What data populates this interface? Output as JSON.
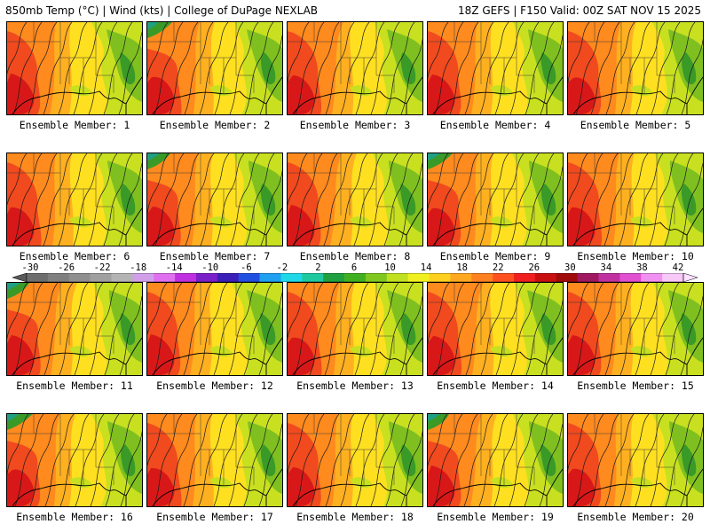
{
  "header": {
    "left": "850mb Temp (°C) | Wind (kts) | College of DuPage NEXLAB",
    "right": "18Z GEFS | F150 Valid: 00Z SAT NOV 15 2025"
  },
  "members": [
    {
      "label": "Ensemble Member: 1",
      "scheme": "warm"
    },
    {
      "label": "Ensemble Member: 2",
      "scheme": "cool"
    },
    {
      "label": "Ensemble Member: 3",
      "scheme": "warm"
    },
    {
      "label": "Ensemble Member: 4",
      "scheme": "warm"
    },
    {
      "label": "Ensemble Member: 5",
      "scheme": "warm"
    },
    {
      "label": "Ensemble Member: 6",
      "scheme": "warm"
    },
    {
      "label": "Ensemble Member: 7",
      "scheme": "cool"
    },
    {
      "label": "Ensemble Member: 8",
      "scheme": "warm"
    },
    {
      "label": "Ensemble Member: 9",
      "scheme": "cool"
    },
    {
      "label": "Ensemble Member: 10",
      "scheme": "warm"
    },
    {
      "label": "Ensemble Member: 11",
      "scheme": "cool"
    },
    {
      "label": "Ensemble Member: 12",
      "scheme": "warm"
    },
    {
      "label": "Ensemble Member: 13",
      "scheme": "warm"
    },
    {
      "label": "Ensemble Member: 14",
      "scheme": "warm"
    },
    {
      "label": "Ensemble Member: 15",
      "scheme": "warm"
    },
    {
      "label": "Ensemble Member: 16",
      "scheme": "cool"
    },
    {
      "label": "Ensemble Member: 17",
      "scheme": "warm"
    },
    {
      "label": "Ensemble Member: 18",
      "scheme": "warm"
    },
    {
      "label": "Ensemble Member: 19",
      "scheme": "cool"
    },
    {
      "label": "Ensemble Member: 20",
      "scheme": "warm"
    }
  ],
  "colorbar": {
    "labels": [
      "-30",
      "-26",
      "-22",
      "-18",
      "-14",
      "-10",
      "-6",
      "-2",
      "2",
      "6",
      "10",
      "14",
      "18",
      "22",
      "26",
      "30",
      "34",
      "38",
      "42"
    ],
    "colors": [
      "#6e6e6e",
      "#7f7f7f",
      "#8f8f8f",
      "#a0a0a0",
      "#b4b4b4",
      "#d19fe8",
      "#e070f0",
      "#c030e0",
      "#7a20c8",
      "#3a20b8",
      "#2050e0",
      "#20a0f0",
      "#20d8e8",
      "#20c8a0",
      "#20a040",
      "#40b020",
      "#80c820",
      "#c0e020",
      "#f0f020",
      "#ffd020",
      "#ffa820",
      "#ff8020",
      "#ff5020",
      "#f02020",
      "#c81010",
      "#a00a0a",
      "#a01860",
      "#c030a0",
      "#e050d0",
      "#f090f0",
      "#f8c8f8"
    ],
    "colors_left_arrow": "#5a5a5a",
    "colors_right_arrow": "#ffe0ff"
  },
  "palette": {
    "hot": "#d81818",
    "red_orange": "#f04a1e",
    "orange": "#ff8a1e",
    "light_orange": "#ffb020",
    "yellow": "#ffe020",
    "lime": "#c8e020",
    "green": "#7fc020",
    "dark_green": "#3a9a28",
    "teal": "#20a080"
  }
}
